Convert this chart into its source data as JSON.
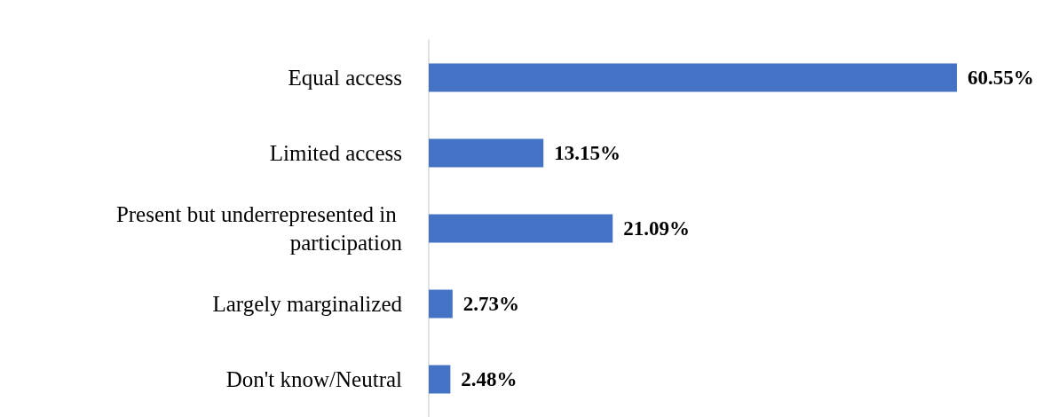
{
  "chart_data": {
    "type": "bar",
    "orientation": "horizontal",
    "categories": [
      "Equal access",
      "Limited access",
      "Present but underrepresented in participation",
      "Largely marginalized",
      "Don't know/Neutral"
    ],
    "values": [
      60.55,
      13.15,
      21.09,
      2.73,
      2.48
    ],
    "value_labels": [
      "60.55%",
      "13.15%",
      "21.09%",
      "2.73%",
      "2.48%"
    ],
    "color": "#4472c4"
  }
}
